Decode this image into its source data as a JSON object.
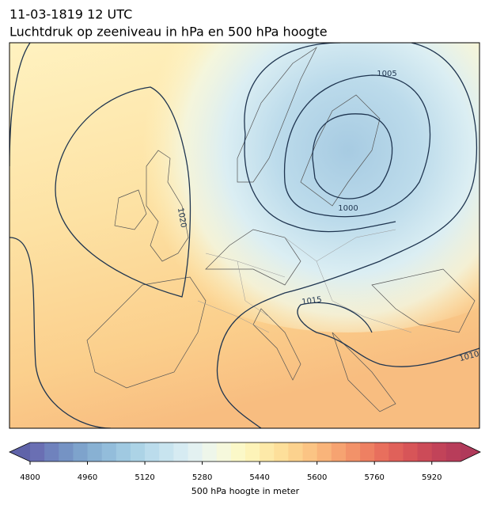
{
  "header": {
    "title": "11-03-1819 12 UTC",
    "subtitle": "Luchtdruk op zeeniveau in hPa en 500 hPa hoogte"
  },
  "map": {
    "contour_labels": [
      "1005",
      "1000",
      "1020",
      "1015",
      "1010"
    ]
  },
  "colorbar": {
    "label": "500 hPa hoogte in meter",
    "lim": [
      4800,
      6000
    ],
    "ticks": [
      4800,
      4960,
      5120,
      5280,
      5440,
      5600,
      5760,
      5920
    ],
    "under_color": "#5f63a9",
    "over_color": "#b03a5a",
    "colors": [
      "#6a6fb3",
      "#6f82bd",
      "#7593c4",
      "#7ea3cc",
      "#88b1d3",
      "#93bddb",
      "#a0c9e1",
      "#acd3e6",
      "#bbdcec",
      "#c8e4ef",
      "#d6ebf2",
      "#e3f1f1",
      "#eef6ea",
      "#f6f8dc",
      "#fbf8c8",
      "#fdf3b8",
      "#fde9a8",
      "#fddf9a",
      "#fcd28e",
      "#fbc484",
      "#f9b47a",
      "#f6a371",
      "#f29269",
      "#ee8062",
      "#e86f5d",
      "#e0615a",
      "#d75558",
      "#cc4b58",
      "#c24359",
      "#b83d5a"
    ]
  }
}
